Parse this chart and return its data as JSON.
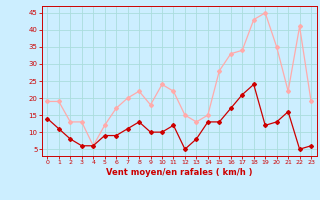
{
  "hours": [
    0,
    1,
    2,
    3,
    4,
    5,
    6,
    7,
    8,
    9,
    10,
    11,
    12,
    13,
    14,
    15,
    16,
    17,
    18,
    19,
    20,
    21,
    22,
    23
  ],
  "wind_avg": [
    14,
    11,
    8,
    6,
    6,
    9,
    9,
    11,
    13,
    10,
    10,
    12,
    5,
    8,
    13,
    13,
    17,
    21,
    24,
    12,
    13,
    16,
    5,
    6
  ],
  "wind_gust": [
    19,
    19,
    13,
    13,
    6,
    12,
    17,
    20,
    22,
    18,
    24,
    22,
    15,
    13,
    15,
    28,
    33,
    34,
    43,
    45,
    35,
    22,
    41,
    19
  ],
  "avg_color": "#cc0000",
  "gust_color": "#ffaaaa",
  "bg_color": "#cceeff",
  "grid_color": "#aadddd",
  "xlabel": "Vent moyen/en rafales ( km/h )",
  "xlabel_color": "#cc0000",
  "tick_color": "#cc0000",
  "ylim": [
    3,
    47
  ],
  "xlim": [
    -0.5,
    23.5
  ],
  "yticks": [
    5,
    10,
    15,
    20,
    25,
    30,
    35,
    40,
    45
  ],
  "xticks": [
    0,
    1,
    2,
    3,
    4,
    5,
    6,
    7,
    8,
    9,
    10,
    11,
    12,
    13,
    14,
    15,
    16,
    17,
    18,
    19,
    20,
    21,
    22,
    23
  ]
}
